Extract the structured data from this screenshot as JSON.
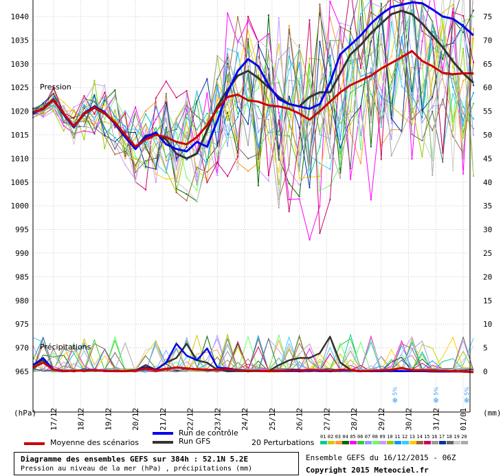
{
  "chart_data": {
    "type": "line",
    "title": "Diagramme des ensembles GEFS sur 384h : 52.1N 5.2E",
    "subtitle": "Pression au niveau de la mer (hPa) , précipitations (mm)",
    "pressure_label": "Pression",
    "precip_label": "Précipitations",
    "y_left_unit": "(hPa)",
    "y_right_unit": "(mm)",
    "y_left_ticks": [
      "1040",
      "1035",
      "1030",
      "1025",
      "1020",
      "1015",
      "1010",
      "1005",
      "1000",
      "995",
      "990",
      "985",
      "980",
      "975",
      "970",
      "965"
    ],
    "y_right_ticks": [
      "75",
      "70",
      "65",
      "60",
      "55",
      "50",
      "45",
      "40",
      "35",
      "30",
      "25",
      "20",
      "15",
      "10",
      "5",
      "0"
    ],
    "x_ticks": [
      "17/12",
      "18/12",
      "19/12",
      "20/12",
      "21/12",
      "22/12",
      "23/12",
      "24/12",
      "25/12",
      "26/12",
      "27/12",
      "28/12",
      "29/12",
      "30/12",
      "31/12",
      "01/01"
    ],
    "snow_markers": [
      {
        "label": "5%",
        "hour": 318
      },
      {
        "label": "5%",
        "hour": 354
      },
      {
        "label": "5%",
        "hour": 381
      }
    ],
    "grid": true,
    "series": [
      {
        "name": "Moyenne des scénarios",
        "color": "#cc0000",
        "pressure": [
          1019.7,
          1020.5,
          1022.4,
          1019.5,
          1016.8,
          1019.5,
          1020.8,
          1019.6,
          1017.6,
          1015.0,
          1012.5,
          1014.0,
          1015.0,
          1014.5,
          1013.5,
          1013.0,
          1014.5,
          1017.0,
          1020.5,
          1023.0,
          1023.5,
          1022.3,
          1022.0,
          1021.2,
          1021.0,
          1020.5,
          1019.5,
          1018.2,
          1020.0,
          1022.0,
          1024.0,
          1025.5,
          1026.5,
          1027.5,
          1029.0,
          1030.2,
          1031.4,
          1032.7,
          1030.6,
          1029.5,
          1028.1,
          1027.8,
          1028.0,
          1028.0
        ],
        "precip": [
          1.0,
          2.0,
          0.5,
          0.2,
          0.3,
          0.3,
          0.4,
          0.3,
          0.2,
          0.2,
          0.3,
          0.8,
          0.4,
          0.7,
          1.0,
          0.8,
          0.6,
          0.5,
          0.5,
          0.6,
          0.4,
          0.3,
          0.3,
          0.2,
          0.3,
          0.4,
          0.4,
          0.5,
          0.4,
          0.3,
          0.5,
          0.4,
          0.2,
          0.3,
          0.4,
          0.5,
          0.9,
          0.4,
          0.4,
          0.3,
          0.3,
          0.2,
          0.1,
          0.0
        ]
      },
      {
        "name": "Run de contrôle",
        "color": "#0000ee",
        "pressure": [
          1019.5,
          1020.6,
          1022.5,
          1019.3,
          1016.6,
          1019.6,
          1021.0,
          1019.8,
          1017.3,
          1014.5,
          1012.0,
          1014.5,
          1015.5,
          1013.0,
          1012.0,
          1011.5,
          1013.5,
          1012.5,
          1018.0,
          1024.0,
          1028.5,
          1031.0,
          1029.5,
          1025.5,
          1022.5,
          1021.5,
          1021.0,
          1020.5,
          1021.5,
          1026.0,
          1032.0,
          1034.0,
          1036.0,
          1038.5,
          1040.5,
          1042.0,
          1042.5,
          1043.0,
          1042.8,
          1041.5,
          1040.0,
          1039.5,
          1038.0,
          1036.0
        ],
        "precip": [
          1.5,
          3.0,
          0.5,
          0.2,
          0.3,
          0.3,
          0.3,
          0.3,
          0.2,
          0.2,
          0.4,
          1.0,
          0.5,
          2.0,
          6.0,
          3.5,
          2.5,
          5.0,
          1.0,
          0.8,
          0.5,
          0.3,
          0.3,
          0.2,
          0.2,
          0.2,
          0.2,
          0.3,
          0.2,
          0.2,
          0.3,
          0.3,
          0.2,
          0.2,
          0.2,
          0.3,
          0.2,
          0.2,
          0.2,
          0.2,
          0.1,
          0.1,
          0.1,
          0.0
        ]
      },
      {
        "name": "Run GFS",
        "color": "#333333",
        "pressure": [
          1019.8,
          1020.4,
          1022.3,
          1019.4,
          1016.7,
          1019.4,
          1020.7,
          1019.5,
          1017.5,
          1014.8,
          1012.2,
          1014.8,
          1015.2,
          1014.0,
          1011.0,
          1010.0,
          1011.0,
          1016.0,
          1021.0,
          1024.5,
          1027.5,
          1028.5,
          1027.0,
          1025.0,
          1023.0,
          1021.5,
          1021.0,
          1023.0,
          1024.0,
          1024.0,
          1028.0,
          1032.0,
          1034.0,
          1036.5,
          1038.5,
          1040.5,
          1041.2,
          1040.5,
          1038.5,
          1036.0,
          1033.5,
          1030.5,
          1028.0,
          1026.0
        ],
        "precip": [
          1.5,
          2.5,
          0.5,
          0.2,
          0.3,
          0.3,
          0.4,
          0.3,
          0.2,
          0.2,
          0.3,
          1.5,
          0.5,
          2.0,
          3.0,
          6.0,
          2.5,
          2.0,
          0.5,
          0.3,
          0.3,
          0.2,
          0.2,
          0.2,
          1.5,
          2.5,
          3.0,
          3.0,
          4.0,
          7.5,
          2.0,
          0.5,
          0.2,
          0.2,
          0.2,
          0.2,
          0.2,
          0.2,
          0.2,
          0.1,
          0.1,
          0.1,
          0.1,
          0.0
        ]
      }
    ],
    "perturbations_label": "20 Perturbations",
    "perturbation_numbers": [
      "01",
      "02",
      "03",
      "04",
      "05",
      "06",
      "07",
      "08",
      "09",
      "10",
      "11",
      "12",
      "13",
      "14",
      "15",
      "16",
      "17",
      "18",
      "19",
      "20"
    ],
    "perturbation_colors": [
      "#00cc99",
      "#cccc00",
      "#ff9933",
      "#006600",
      "#ff00ff",
      "#33cc33",
      "#9999ff",
      "#66ff66",
      "#cc99ff",
      "#99cc00",
      "#0099ff",
      "#33ccff",
      "#ffcc00",
      "#996633",
      "#cc0066",
      "#999999",
      "#003399",
      "#666666",
      "#cccccc",
      "#aaaaaa"
    ]
  },
  "legend": {
    "mean": "Moyenne des scénarios",
    "control": "Run de contrôle",
    "gfs": "Run GFS",
    "perturbations": "20 Perturbations"
  },
  "footer": {
    "title": "Diagramme des ensembles GEFS sur 384h : 52.1N 5.2E",
    "subtitle": "Pression au niveau de la mer (hPa) , précipitations (mm)",
    "run_info": "Ensemble GEFS du 16/12/2015 - 06Z",
    "copyright": "Copyright 2015 Meteociel.fr"
  },
  "colors": {
    "mean": "#cc0000",
    "control": "#0000ee",
    "gfs": "#333333"
  }
}
